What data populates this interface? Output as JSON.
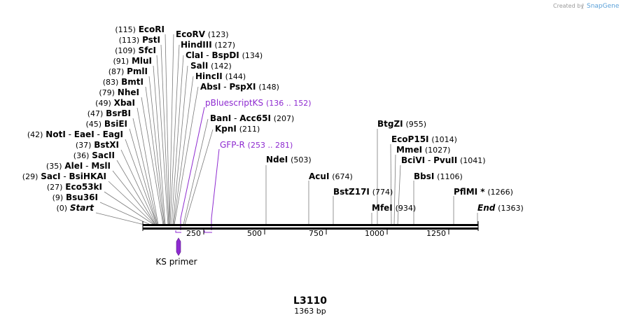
{
  "credit": {
    "prefix": "Created by",
    "brand": "SnapGene"
  },
  "map": {
    "name": "L3110",
    "length_label": "1363 bp",
    "length": 1363
  },
  "ruler": [
    "250",
    "500",
    "750",
    "1000",
    "1250"
  ],
  "primer": {
    "name": "KS primer"
  },
  "sites": [
    {
      "id": "ecori",
      "pos": "(115)",
      "names": [
        "EcoRI"
      ]
    },
    {
      "id": "psti",
      "pos": "(113)",
      "names": [
        "PstI"
      ]
    },
    {
      "id": "sfci",
      "pos": "(109)",
      "names": [
        "SfcI"
      ]
    },
    {
      "id": "mlui",
      "pos": "(91)",
      "names": [
        "MluI"
      ]
    },
    {
      "id": "pmli",
      "pos": "(87)",
      "names": [
        "PmlI"
      ]
    },
    {
      "id": "bmti",
      "pos": "(83)",
      "names": [
        "BmtI"
      ]
    },
    {
      "id": "nhei",
      "pos": "(79)",
      "names": [
        "NheI"
      ]
    },
    {
      "id": "xbai",
      "pos": "(49)",
      "names": [
        "XbaI"
      ]
    },
    {
      "id": "bsrbi",
      "pos": "(47)",
      "names": [
        "BsrBI"
      ]
    },
    {
      "id": "bsiei",
      "pos": "(45)",
      "names": [
        "BsiEI"
      ]
    },
    {
      "id": "noti",
      "pos": "(42)",
      "names": [
        "NotI",
        "EaeI",
        "EagI"
      ]
    },
    {
      "id": "bstxi",
      "pos": "(37)",
      "names": [
        "BstXI"
      ]
    },
    {
      "id": "sacii",
      "pos": "(36)",
      "names": [
        "SacII"
      ]
    },
    {
      "id": "alei",
      "pos": "(35)",
      "names": [
        "AleI",
        "MslI"
      ]
    },
    {
      "id": "saci",
      "pos": "(29)",
      "names": [
        "SacI",
        "BsiHKAI"
      ]
    },
    {
      "id": "eco53ki",
      "pos": "(27)",
      "names": [
        "Eco53kI"
      ]
    },
    {
      "id": "bsu36i",
      "pos": "(9)",
      "names": [
        "Bsu36I"
      ]
    },
    {
      "id": "start",
      "pos": "(0)",
      "names": [
        "Start"
      ]
    },
    {
      "id": "ecorv",
      "pos": "(123)",
      "names": [
        "EcoRV"
      ]
    },
    {
      "id": "hindiii",
      "pos": "(127)",
      "names": [
        "HindIII"
      ]
    },
    {
      "id": "clai",
      "pos": "(134)",
      "names": [
        "ClaI",
        "BspDI"
      ]
    },
    {
      "id": "sali",
      "pos": "(142)",
      "names": [
        "SalI"
      ]
    },
    {
      "id": "hincii",
      "pos": "(144)",
      "names": [
        "HincII"
      ]
    },
    {
      "id": "absi",
      "pos": "(148)",
      "names": [
        "AbsI",
        "PspXI"
      ]
    },
    {
      "id": "bani",
      "pos": "(207)",
      "names": [
        "BanI",
        "Acc65I"
      ]
    },
    {
      "id": "kpni",
      "pos": "(211)",
      "names": [
        "KpnI"
      ]
    },
    {
      "id": "ndei",
      "pos": "(503)",
      "names": [
        "NdeI"
      ]
    },
    {
      "id": "acui",
      "pos": "(674)",
      "names": [
        "AcuI"
      ]
    },
    {
      "id": "bstz17i",
      "pos": "(774)",
      "names": [
        "BstZ17I"
      ]
    },
    {
      "id": "mfei",
      "pos": "(934)",
      "names": [
        "MfeI"
      ]
    },
    {
      "id": "btgzi",
      "pos": "(955)",
      "names": [
        "BtgZI"
      ]
    },
    {
      "id": "ecop15i",
      "pos": "(1014)",
      "names": [
        "EcoP15I"
      ]
    },
    {
      "id": "mmei",
      "pos": "(1027)",
      "names": [
        "MmeI"
      ]
    },
    {
      "id": "bcivi",
      "pos": "(1041)",
      "names": [
        "BciVI",
        "PvuII"
      ]
    },
    {
      "id": "bbsi",
      "pos": "(1106)",
      "names": [
        "BbsI"
      ]
    },
    {
      "id": "pflmi",
      "pos": "(1266)",
      "names": [
        "PflMI *"
      ]
    },
    {
      "id": "end",
      "pos": "(1363)",
      "names": [
        "End"
      ]
    }
  ],
  "features": [
    {
      "id": "pbluescriptks",
      "name": "pBluescriptKS",
      "range": "(136 .. 152)"
    },
    {
      "id": "gfpr",
      "name": "GFP-R",
      "range": "(253 .. 281)"
    }
  ],
  "colors": {
    "feature": "#8e2ad0",
    "lines": "#7a7a7a",
    "backbone": "#000000",
    "brand": "#5aa0d8"
  }
}
